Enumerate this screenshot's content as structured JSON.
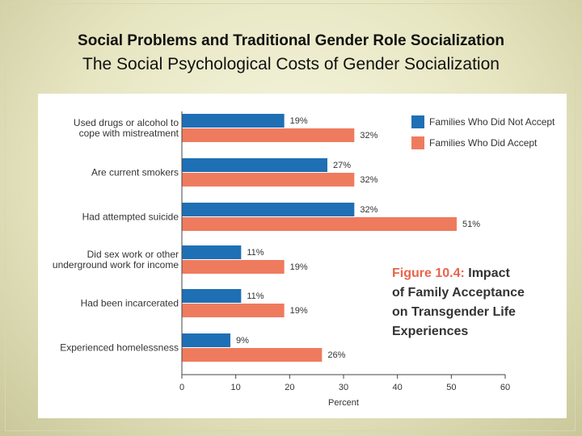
{
  "slide": {
    "title": "Social Problems and Traditional Gender Role Socialization",
    "subtitle": "The Social Psychological Costs of Gender Socialization"
  },
  "figure": {
    "label": "Figure 10.4:",
    "title_lines": [
      "Impact",
      "of Family Acceptance",
      "on Transgender Life",
      "Experiences"
    ]
  },
  "chart_data": {
    "type": "bar",
    "orientation": "horizontal",
    "categories": [
      [
        "Used drugs or alcohol to",
        "cope with mistreatment"
      ],
      [
        "Are current smokers"
      ],
      [
        "Had attempted suicide"
      ],
      [
        "Did sex work or other",
        "underground work for income"
      ],
      [
        "Had been incarcerated"
      ],
      [
        "Experienced homelessness"
      ]
    ],
    "series": [
      {
        "name": "Families Who Did Not Accept",
        "color": "#1f6fb5",
        "values": [
          19,
          27,
          32,
          11,
          11,
          9
        ],
        "labels": [
          "19%",
          "27%",
          "32%",
          "11%",
          "11%",
          "9%"
        ]
      },
      {
        "name": "Families Who Did Accept",
        "color": "#ef7b5f",
        "values": [
          32,
          32,
          51,
          19,
          19,
          26
        ],
        "labels": [
          "32%",
          "32%",
          "51%",
          "19%",
          "19%",
          "26%"
        ]
      }
    ],
    "xlabel": "Percent",
    "xlim": [
      0,
      60
    ],
    "xticks": [
      0,
      10,
      20,
      30,
      40,
      50,
      60
    ],
    "grid": false,
    "legend_position": "top-right"
  }
}
